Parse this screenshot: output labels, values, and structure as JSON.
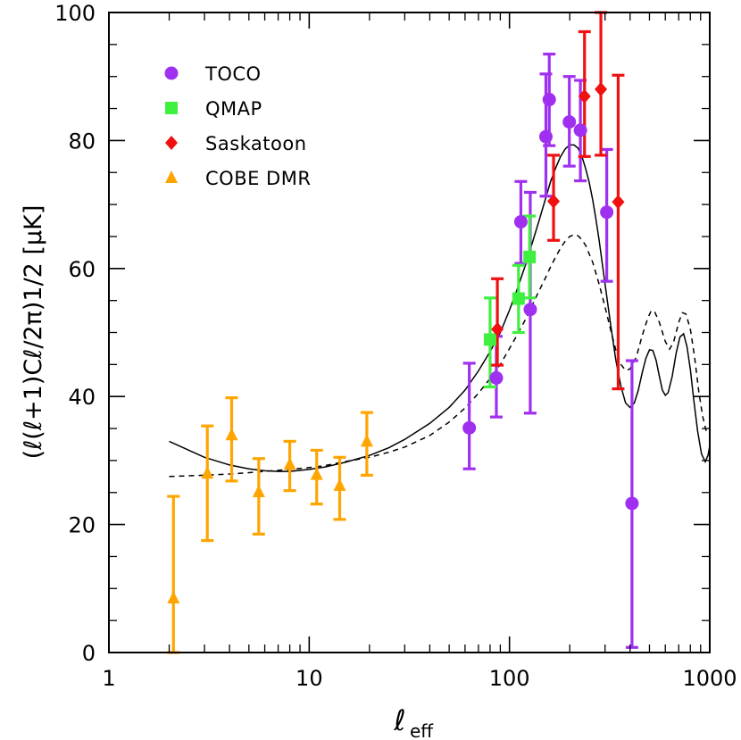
{
  "chart_data": {
    "type": "scatter",
    "title": "",
    "xlabel": "ℓ",
    "xlabel_sub": "eff",
    "ylabel": "(ℓ(ℓ+1)Cℓ/2π)1/2 [μK]",
    "x_scale": "log",
    "xlim": [
      1,
      1000
    ],
    "ylim": [
      0,
      100
    ],
    "x_ticks": [
      {
        "value": 1,
        "label": "1"
      },
      {
        "value": 10,
        "label": "10"
      },
      {
        "value": 100,
        "label": "100"
      },
      {
        "value": 1000,
        "label": "1000"
      }
    ],
    "y_ticks": [
      {
        "value": 0,
        "label": "0"
      },
      {
        "value": 20,
        "label": "20"
      },
      {
        "value": 40,
        "label": "40"
      },
      {
        "value": 60,
        "label": "60"
      },
      {
        "value": 80,
        "label": "80"
      },
      {
        "value": 100,
        "label": "100"
      }
    ],
    "legend_position": "top-left",
    "grid": false,
    "series": [
      {
        "name": "TOCO",
        "marker": "circle",
        "color": "#a030f0",
        "points": [
          {
            "x": 63,
            "y": 35.1,
            "lo": 28.7,
            "hi": 45.2
          },
          {
            "x": 86,
            "y": 42.9,
            "lo": 36.8,
            "hi": 49.4
          },
          {
            "x": 114,
            "y": 67.3,
            "lo": 60.8,
            "hi": 73.6
          },
          {
            "x": 127,
            "y": 53.6,
            "lo": 37.4,
            "hi": 71.9
          },
          {
            "x": 152,
            "y": 80.6,
            "lo": 71.3,
            "hi": 90.4
          },
          {
            "x": 158,
            "y": 86.4,
            "lo": 79.2,
            "hi": 93.5
          },
          {
            "x": 199,
            "y": 82.9,
            "lo": 76.0,
            "hi": 90.0
          },
          {
            "x": 226,
            "y": 81.6,
            "lo": 73.7,
            "hi": 89.4
          },
          {
            "x": 306,
            "y": 68.8,
            "lo": 58.0,
            "hi": 78.6
          },
          {
            "x": 409,
            "y": 23.3,
            "lo": 0.8,
            "hi": 45.6
          }
        ]
      },
      {
        "name": "QMAP",
        "marker": "square",
        "color": "#40f040",
        "points": [
          {
            "x": 80,
            "y": 48.9,
            "lo": 41.5,
            "hi": 55.4
          },
          {
            "x": 111,
            "y": 55.3,
            "lo": 50.0,
            "hi": 60.5
          },
          {
            "x": 126,
            "y": 61.8,
            "lo": 55.4,
            "hi": 68.2
          }
        ]
      },
      {
        "name": "Saskatoon",
        "marker": "diamond",
        "color": "#f01010",
        "points": [
          {
            "x": 87,
            "y": 50.5,
            "lo": 44.9,
            "hi": 58.4
          },
          {
            "x": 166,
            "y": 70.5,
            "lo": 64.4,
            "hi": 77.7
          },
          {
            "x": 237,
            "y": 86.9,
            "lo": 77.5,
            "hi": 97.0
          },
          {
            "x": 286,
            "y": 88.0,
            "lo": 77.7,
            "hi": 100.0
          },
          {
            "x": 349,
            "y": 70.4,
            "lo": 41.2,
            "hi": 90.2
          }
        ]
      },
      {
        "name": "COBE DMR",
        "marker": "triangle",
        "color": "#ffa500",
        "points": [
          {
            "x": 2.1,
            "y": 8.5,
            "lo": 0.0,
            "hi": 24.4
          },
          {
            "x": 3.1,
            "y": 28.0,
            "lo": 17.5,
            "hi": 35.4
          },
          {
            "x": 4.1,
            "y": 34.0,
            "lo": 26.8,
            "hi": 39.8
          },
          {
            "x": 5.6,
            "y": 25.1,
            "lo": 18.5,
            "hi": 30.3
          },
          {
            "x": 8.0,
            "y": 29.4,
            "lo": 25.3,
            "hi": 33.0
          },
          {
            "x": 10.9,
            "y": 27.8,
            "lo": 23.2,
            "hi": 31.6
          },
          {
            "x": 14.2,
            "y": 26.1,
            "lo": 20.8,
            "hi": 30.5
          },
          {
            "x": 19.4,
            "y": 33.0,
            "lo": 27.7,
            "hi": 37.5
          }
        ]
      }
    ],
    "curves": [
      {
        "style": "solid",
        "color": "#000000",
        "points": [
          [
            2,
            33.0
          ],
          [
            3,
            30.5
          ],
          [
            4,
            29.3
          ],
          [
            5,
            28.7
          ],
          [
            6,
            28.4
          ],
          [
            7,
            28.3
          ],
          [
            8,
            28.3
          ],
          [
            10,
            28.6
          ],
          [
            12,
            29.0
          ],
          [
            15,
            29.7
          ],
          [
            20,
            30.8
          ],
          [
            25,
            32.0
          ],
          [
            30,
            33.3
          ],
          [
            40,
            35.8
          ],
          [
            50,
            38.3
          ],
          [
            60,
            41.0
          ],
          [
            70,
            44.0
          ],
          [
            80,
            47.0
          ],
          [
            90,
            50.0
          ],
          [
            100,
            53.5
          ],
          [
            110,
            57.0
          ],
          [
            120,
            60.5
          ],
          [
            130,
            64.0
          ],
          [
            140,
            67.3
          ],
          [
            150,
            70.5
          ],
          [
            160,
            73.5
          ],
          [
            170,
            75.7
          ],
          [
            180,
            77.5
          ],
          [
            190,
            78.7
          ],
          [
            200,
            79.3
          ],
          [
            210,
            79.3
          ],
          [
            220,
            78.8
          ],
          [
            230,
            77.5
          ],
          [
            240,
            75.6
          ],
          [
            250,
            73.5
          ],
          [
            260,
            70.8
          ],
          [
            270,
            67.8
          ],
          [
            280,
            64.5
          ],
          [
            290,
            61.0
          ],
          [
            300,
            57.6
          ],
          [
            320,
            51.2
          ],
          [
            340,
            45.6
          ],
          [
            360,
            41.6
          ],
          [
            380,
            39.0
          ],
          [
            400,
            38.3
          ],
          [
            420,
            39.0
          ],
          [
            440,
            41.0
          ],
          [
            460,
            43.7
          ],
          [
            480,
            46.0
          ],
          [
            500,
            47.3
          ],
          [
            520,
            47.2
          ],
          [
            540,
            45.6
          ],
          [
            560,
            43.2
          ],
          [
            580,
            41.0
          ],
          [
            600,
            40.2
          ],
          [
            620,
            40.6
          ],
          [
            650,
            43.2
          ],
          [
            680,
            46.8
          ],
          [
            710,
            49.3
          ],
          [
            740,
            49.8
          ],
          [
            770,
            47.8
          ],
          [
            800,
            44.2
          ],
          [
            830,
            39.8
          ],
          [
            870,
            34.6
          ],
          [
            910,
            31.0
          ],
          [
            950,
            29.8
          ],
          [
            980,
            30.8
          ],
          [
            1000,
            32.3
          ]
        ]
      },
      {
        "style": "dashed",
        "color": "#000000",
        "points": [
          [
            2,
            27.5
          ],
          [
            3,
            27.7
          ],
          [
            4,
            27.9
          ],
          [
            5,
            28.1
          ],
          [
            6,
            28.3
          ],
          [
            8,
            28.6
          ],
          [
            10,
            28.9
          ],
          [
            12,
            29.2
          ],
          [
            15,
            29.8
          ],
          [
            20,
            30.5
          ],
          [
            25,
            31.3
          ],
          [
            30,
            32.1
          ],
          [
            40,
            33.9
          ],
          [
            50,
            36.0
          ],
          [
            60,
            38.2
          ],
          [
            70,
            40.5
          ],
          [
            80,
            42.8
          ],
          [
            90,
            45.0
          ],
          [
            100,
            47.5
          ],
          [
            110,
            49.8
          ],
          [
            120,
            52.0
          ],
          [
            130,
            54.3
          ],
          [
            140,
            56.4
          ],
          [
            150,
            58.3
          ],
          [
            160,
            60.2
          ],
          [
            170,
            61.8
          ],
          [
            180,
            63.2
          ],
          [
            190,
            64.3
          ],
          [
            200,
            65.0
          ],
          [
            210,
            65.3
          ],
          [
            220,
            65.1
          ],
          [
            230,
            64.5
          ],
          [
            240,
            63.6
          ],
          [
            260,
            61.0
          ],
          [
            280,
            57.6
          ],
          [
            300,
            54.0
          ],
          [
            320,
            50.4
          ],
          [
            340,
            47.2
          ],
          [
            360,
            45.0
          ],
          [
            380,
            44.1
          ],
          [
            400,
            44.3
          ],
          [
            430,
            46.2
          ],
          [
            460,
            49.5
          ],
          [
            490,
            52.2
          ],
          [
            510,
            53.4
          ],
          [
            530,
            53.3
          ],
          [
            560,
            51.6
          ],
          [
            600,
            48.6
          ],
          [
            630,
            47.4
          ],
          [
            660,
            48.5
          ],
          [
            700,
            51.6
          ],
          [
            730,
            53.1
          ],
          [
            760,
            52.9
          ],
          [
            800,
            50.5
          ],
          [
            840,
            46.2
          ],
          [
            880,
            41.0
          ],
          [
            920,
            37.0
          ],
          [
            960,
            34.6
          ],
          [
            1000,
            34.2
          ]
        ]
      }
    ]
  }
}
